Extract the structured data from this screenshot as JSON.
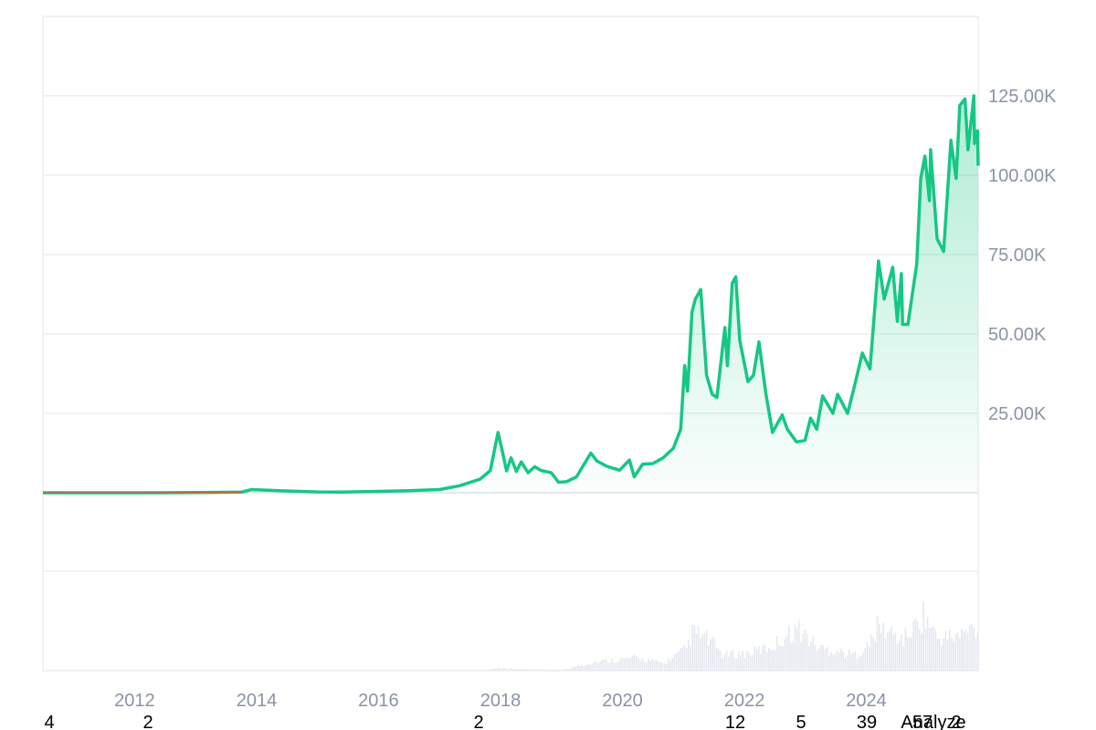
{
  "chart_data": {
    "type": "area",
    "x_axis": {
      "type": "date",
      "range": [
        "2010-07-01",
        "2025-11-01"
      ],
      "tick_labels": [
        "2012",
        "2014",
        "2016",
        "2018",
        "2020",
        "2022",
        "2024"
      ]
    },
    "y_axis": {
      "position": "right",
      "range": [
        -50000,
        150000
      ],
      "tick_values": [
        25000,
        50000,
        75000,
        100000,
        125000
      ],
      "tick_labels": [
        "25.00K",
        "50.00K",
        "75.00K",
        "100.00K",
        "125.00K"
      ]
    },
    "grid": true,
    "colors": {
      "price_line": "#16c784",
      "price_fill": "#16c784",
      "early_line": "#d2573b",
      "volume": "#e4e8ef",
      "grid": "#eceef1",
      "axis_text": "#8a93a6"
    },
    "series": [
      {
        "values": [
          [
            "2010-07-01",
            0.08
          ],
          [
            "2011-06-01",
            18
          ],
          [
            "2012-06-01",
            6
          ],
          [
            "2013-04-01",
            120
          ],
          [
            "2013-10-01",
            180
          ],
          [
            "2013-12-01",
            1000
          ],
          [
            "2014-01-01",
            950
          ],
          [
            "2014-06-01",
            600
          ],
          [
            "2015-01-01",
            250
          ],
          [
            "2015-06-01",
            230
          ],
          [
            "2016-01-01",
            420
          ],
          [
            "2016-07-01",
            650
          ],
          [
            "2017-01-01",
            1000
          ],
          [
            "2017-05-01",
            2200
          ],
          [
            "2017-09-01",
            4300
          ],
          [
            "2017-11-01",
            7000
          ],
          [
            "2017-12-17",
            19000
          ],
          [
            "2018-01-10",
            13500
          ],
          [
            "2018-02-06",
            6900
          ],
          [
            "2018-03-05",
            11000
          ],
          [
            "2018-04-06",
            6700
          ],
          [
            "2018-05-05",
            9700
          ],
          [
            "2018-06-15",
            6300
          ],
          [
            "2018-07-25",
            8200
          ],
          [
            "2018-09-01",
            7000
          ],
          [
            "2018-11-01",
            6300
          ],
          [
            "2018-12-15",
            3300
          ],
          [
            "2019-02-01",
            3500
          ],
          [
            "2019-04-01",
            5000
          ],
          [
            "2019-06-26",
            12500
          ],
          [
            "2019-08-01",
            10000
          ],
          [
            "2019-10-01",
            8300
          ],
          [
            "2019-12-15",
            7100
          ],
          [
            "2020-02-12",
            10300
          ],
          [
            "2020-03-12",
            5000
          ],
          [
            "2020-05-01",
            9000
          ],
          [
            "2020-07-01",
            9200
          ],
          [
            "2020-09-01",
            11000
          ],
          [
            "2020-11-01",
            14000
          ],
          [
            "2020-12-15",
            20000
          ],
          [
            "2021-01-08",
            40000
          ],
          [
            "2021-01-25",
            32000
          ],
          [
            "2021-02-21",
            57000
          ],
          [
            "2021-03-13",
            61000
          ],
          [
            "2021-04-14",
            64000
          ],
          [
            "2021-05-19",
            37000
          ],
          [
            "2021-06-22",
            31000
          ],
          [
            "2021-07-20",
            30000
          ],
          [
            "2021-09-06",
            52000
          ],
          [
            "2021-09-21",
            40000
          ],
          [
            "2021-10-20",
            66000
          ],
          [
            "2021-11-10",
            68000
          ],
          [
            "2021-12-04",
            48000
          ],
          [
            "2022-01-22",
            35000
          ],
          [
            "2022-02-24",
            37000
          ],
          [
            "2022-03-29",
            47500
          ],
          [
            "2022-05-10",
            31000
          ],
          [
            "2022-06-18",
            19000
          ],
          [
            "2022-08-15",
            24500
          ],
          [
            "2022-09-15",
            20000
          ],
          [
            "2022-11-09",
            16000
          ],
          [
            "2022-12-30",
            16500
          ],
          [
            "2023-02-01",
            23500
          ],
          [
            "2023-03-10",
            20000
          ],
          [
            "2023-04-14",
            30500
          ],
          [
            "2023-06-15",
            25000
          ],
          [
            "2023-07-13",
            31000
          ],
          [
            "2023-09-11",
            25000
          ],
          [
            "2023-10-24",
            34000
          ],
          [
            "2023-12-08",
            44000
          ],
          [
            "2024-01-23",
            39000
          ],
          [
            "2024-03-14",
            73000
          ],
          [
            "2024-04-17",
            61000
          ],
          [
            "2024-06-07",
            71000
          ],
          [
            "2024-07-05",
            54000
          ],
          [
            "2024-07-29",
            69000
          ],
          [
            "2024-08-05",
            53000
          ],
          [
            "2024-09-06",
            53000
          ],
          [
            "2024-10-29",
            72000
          ],
          [
            "2024-11-22",
            99000
          ],
          [
            "2024-12-17",
            106000
          ],
          [
            "2025-01-13",
            92000
          ],
          [
            "2025-01-20",
            108000
          ],
          [
            "2025-02-28",
            80000
          ],
          [
            "2025-04-08",
            76000
          ],
          [
            "2025-05-22",
            111000
          ],
          [
            "2025-06-22",
            99000
          ],
          [
            "2025-07-14",
            122000
          ],
          [
            "2025-08-14",
            124000
          ],
          [
            "2025-09-01",
            108000
          ],
          [
            "2025-10-06",
            125000
          ],
          [
            "2025-10-10",
            110000
          ],
          [
            "2025-10-28",
            114000
          ],
          [
            "2025-11-01",
            103000
          ]
        ]
      }
    ],
    "volume": {
      "values": [
        [
          "2017-10-01",
          0.005
        ],
        [
          "2017-12-15",
          0.04
        ],
        [
          "2018-06-01",
          0.02
        ],
        [
          "2019-01-01",
          0.01
        ],
        [
          "2019-05-01",
          0.08
        ],
        [
          "2019-07-01",
          0.12
        ],
        [
          "2020-03-12",
          0.18
        ],
        [
          "2020-09-01",
          0.1
        ],
        [
          "2021-01-10",
          0.3
        ],
        [
          "2021-02-25",
          0.55
        ],
        [
          "2021-05-19",
          0.45
        ],
        [
          "2021-09-01",
          0.22
        ],
        [
          "2022-01-20",
          0.25
        ],
        [
          "2022-06-15",
          0.35
        ],
        [
          "2022-11-09",
          0.6
        ],
        [
          "2023-03-15",
          0.33
        ],
        [
          "2023-10-25",
          0.22
        ],
        [
          "2024-01-12",
          0.35
        ],
        [
          "2024-03-05",
          0.62
        ],
        [
          "2024-08-05",
          0.44
        ],
        [
          "2024-11-12",
          0.7
        ],
        [
          "2024-12-05",
          0.8
        ],
        [
          "2025-03-01",
          0.45
        ],
        [
          "2025-07-14",
          0.5
        ],
        [
          "2025-10-10",
          0.62
        ],
        [
          "2025-11-01",
          0.55
        ]
      ]
    },
    "footer_labels": [
      "4",
      "2",
      "2",
      "12",
      "5",
      "39",
      "Analyze",
      "57",
      "2"
    ]
  }
}
